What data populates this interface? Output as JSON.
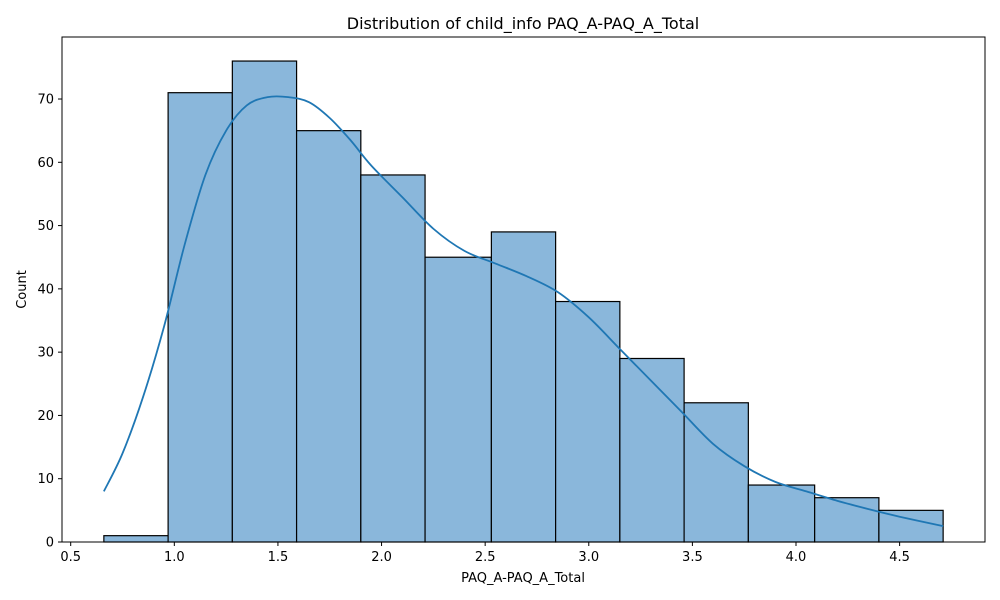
{
  "chart_data": {
    "type": "bar",
    "subtype": "histogram-with-kde",
    "title": "Distribution of child_info PAQ_A-PAQ_A_Total",
    "xlabel": "PAQ_A-PAQ_A_Total",
    "ylabel": "Count",
    "bin_edges": [
      0.66,
      0.97,
      1.28,
      1.59,
      1.9,
      2.21,
      2.53,
      2.84,
      3.15,
      3.46,
      3.77,
      4.09,
      4.4,
      4.71
    ],
    "values": [
      1,
      71,
      76,
      65,
      58,
      45,
      49,
      38,
      29,
      22,
      9,
      7,
      5
    ],
    "kde": {
      "x": [
        0.66,
        0.75,
        0.85,
        0.95,
        1.05,
        1.15,
        1.25,
        1.35,
        1.45,
        1.55,
        1.65,
        1.75,
        1.85,
        1.95,
        2.1,
        2.25,
        2.4,
        2.55,
        2.7,
        2.85,
        3.0,
        3.15,
        3.3,
        3.45,
        3.6,
        3.75,
        3.9,
        4.05,
        4.2,
        4.35,
        4.5,
        4.71
      ],
      "y": [
        8,
        14,
        23,
        34,
        47,
        58,
        65,
        69,
        70.3,
        70.3,
        69.5,
        67,
        63.5,
        59.5,
        54.5,
        49.5,
        46,
        44,
        42,
        39.5,
        35.5,
        30.5,
        25.5,
        20.5,
        15.5,
        12,
        9.5,
        8,
        6.5,
        5.2,
        4,
        2.5
      ]
    },
    "xlim": [
      0.458,
      4.912
    ],
    "ylim": [
      0,
      79.8
    ],
    "xticks": [
      0.5,
      1.0,
      1.5,
      2.0,
      2.5,
      3.0,
      3.5,
      4.0,
      4.5
    ],
    "xtick_labels": [
      "0.5",
      "1.0",
      "1.5",
      "2.0",
      "2.5",
      "3.0",
      "3.5",
      "4.0",
      "4.5"
    ],
    "yticks": [
      0,
      10,
      20,
      30,
      40,
      50,
      60,
      70
    ],
    "ytick_labels": [
      "0",
      "10",
      "20",
      "30",
      "40",
      "50",
      "60",
      "70"
    ],
    "grid": false,
    "colors": {
      "bar_fill": "#8ab7db",
      "bar_edge": "#000000",
      "kde_line": "#1f77b4"
    }
  }
}
